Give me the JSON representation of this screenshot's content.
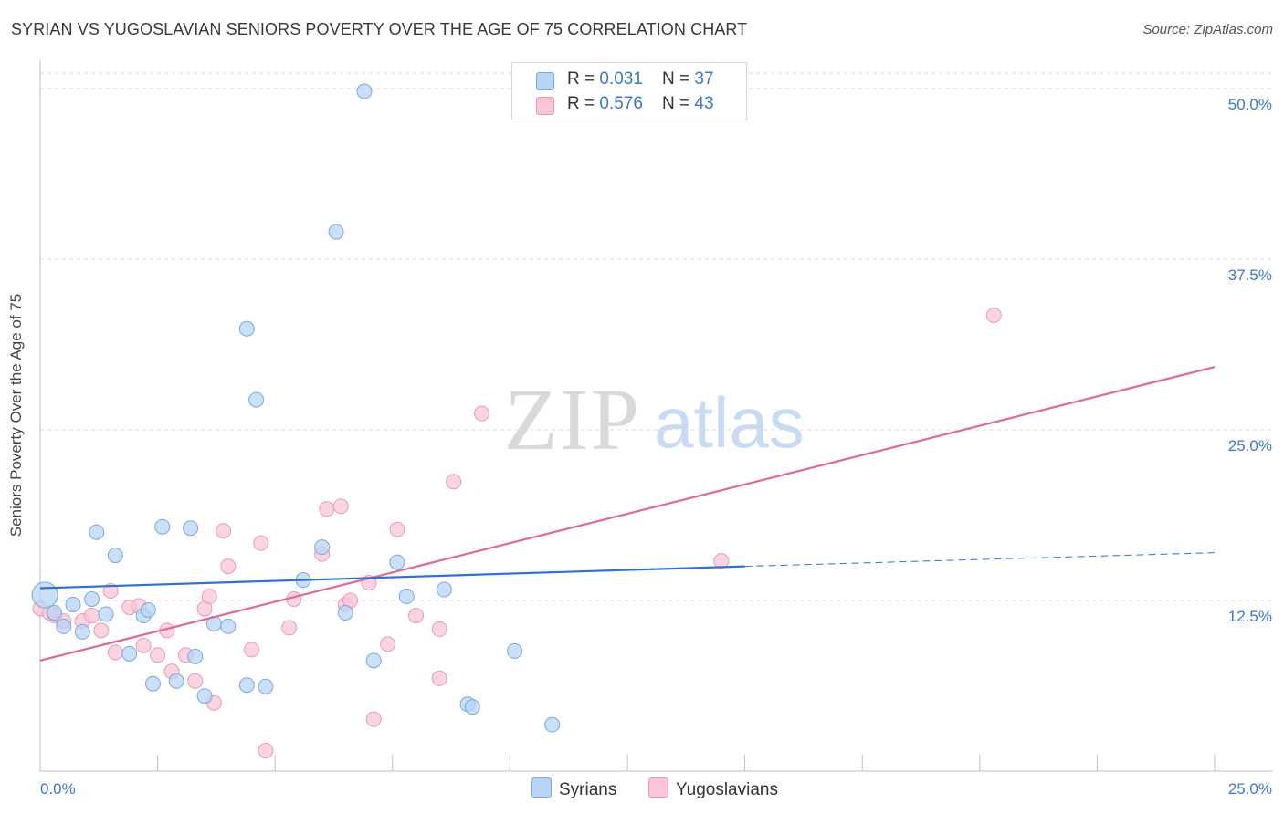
{
  "header": {
    "title": "SYRIAN VS YUGOSLAVIAN SENIORS POVERTY OVER THE AGE OF 75 CORRELATION CHART",
    "source": "Source: ZipAtlas.com"
  },
  "watermark": {
    "zip": "ZIP",
    "atlas": "atlas"
  },
  "legend": {
    "rows": [
      {
        "r_label": "R = ",
        "r_value": "0.031",
        "n_label": "N = ",
        "n_value": "37"
      },
      {
        "r_label": "R = ",
        "r_value": "0.576",
        "n_label": "N = ",
        "n_value": "43"
      }
    ],
    "bottom": [
      "Syrians",
      "Yugoslavians"
    ]
  },
  "colors": {
    "syrians_fill": "#b8d4f5",
    "syrians_stroke": "#7aa8de",
    "syrians_line": "#2f72cf",
    "yugoslavians_fill": "#f8c6d5",
    "yugoslavians_stroke": "#e99ab3",
    "yugoslavians_line": "#e0699a",
    "axis_label": "#3b78c8"
  },
  "chart_data": {
    "type": "scatter",
    "title": "SYRIAN VS YUGOSLAVIAN SENIORS POVERTY OVER THE AGE OF 75 CORRELATION CHART",
    "xlabel": "",
    "ylabel": "Seniors Poverty Over the Age of 75",
    "xlim": [
      0,
      25
    ],
    "ylim": [
      0,
      50
    ],
    "x_tick_labels": [
      "0.0%",
      "25.0%"
    ],
    "y_ticks": [
      12.5,
      25.0,
      37.5,
      50.0
    ],
    "y_tick_labels": [
      "12.5%",
      "25.0%",
      "37.5%",
      "50.0%"
    ],
    "grid": "horizontal dashed",
    "series": [
      {
        "name": "Syrians",
        "r": 0.031,
        "n": 37,
        "points": [
          [
            0.1,
            12.9
          ],
          [
            0.3,
            11.6
          ],
          [
            0.5,
            10.6
          ],
          [
            0.7,
            12.2
          ],
          [
            0.9,
            10.2
          ],
          [
            1.1,
            12.6
          ],
          [
            1.2,
            17.5
          ],
          [
            1.4,
            11.5
          ],
          [
            1.6,
            15.8
          ],
          [
            1.9,
            8.6
          ],
          [
            2.2,
            11.4
          ],
          [
            2.3,
            11.8
          ],
          [
            2.4,
            6.4
          ],
          [
            2.6,
            17.9
          ],
          [
            2.9,
            6.6
          ],
          [
            3.2,
            17.8
          ],
          [
            3.3,
            8.4
          ],
          [
            3.5,
            5.5
          ],
          [
            3.7,
            10.8
          ],
          [
            4.0,
            10.6
          ],
          [
            4.4,
            6.3
          ],
          [
            4.4,
            32.4
          ],
          [
            4.6,
            27.2
          ],
          [
            4.8,
            6.2
          ],
          [
            5.6,
            14.0
          ],
          [
            6.3,
            39.5
          ],
          [
            6.0,
            16.4
          ],
          [
            6.5,
            11.6
          ],
          [
            6.9,
            49.8
          ],
          [
            7.1,
            8.1
          ],
          [
            7.6,
            15.3
          ],
          [
            7.8,
            12.8
          ],
          [
            8.6,
            13.3
          ],
          [
            9.1,
            4.9
          ],
          [
            9.2,
            4.7
          ],
          [
            10.1,
            8.8
          ],
          [
            10.9,
            3.4
          ]
        ],
        "trend_solid": [
          [
            0,
            13.4
          ],
          [
            15.0,
            15.0
          ]
        ],
        "trend_dashed": [
          [
            15.0,
            15.0
          ],
          [
            25.0,
            16.0
          ]
        ]
      },
      {
        "name": "Yugoslavians",
        "r": 0.576,
        "n": 43,
        "points": [
          [
            0.0,
            11.9
          ],
          [
            0.3,
            11.4
          ],
          [
            0.5,
            11.0
          ],
          [
            0.9,
            11.0
          ],
          [
            1.1,
            11.4
          ],
          [
            1.3,
            10.3
          ],
          [
            1.5,
            13.2
          ],
          [
            1.6,
            8.7
          ],
          [
            1.9,
            12.0
          ],
          [
            2.1,
            12.1
          ],
          [
            2.2,
            9.2
          ],
          [
            2.5,
            8.5
          ],
          [
            2.7,
            10.3
          ],
          [
            2.8,
            7.3
          ],
          [
            3.1,
            8.5
          ],
          [
            3.3,
            6.6
          ],
          [
            3.5,
            11.9
          ],
          [
            3.6,
            12.8
          ],
          [
            3.7,
            5.0
          ],
          [
            3.9,
            17.6
          ],
          [
            4.0,
            15.0
          ],
          [
            4.5,
            8.9
          ],
          [
            4.7,
            16.7
          ],
          [
            4.8,
            1.5
          ],
          [
            5.3,
            10.5
          ],
          [
            5.4,
            12.6
          ],
          [
            6.0,
            15.9
          ],
          [
            6.1,
            19.2
          ],
          [
            6.4,
            19.4
          ],
          [
            6.5,
            12.2
          ],
          [
            6.6,
            12.5
          ],
          [
            7.0,
            13.8
          ],
          [
            7.1,
            3.8
          ],
          [
            7.4,
            9.3
          ],
          [
            7.6,
            17.7
          ],
          [
            8.0,
            11.4
          ],
          [
            8.5,
            6.8
          ],
          [
            8.5,
            10.4
          ],
          [
            8.8,
            21.2
          ],
          [
            9.4,
            26.2
          ],
          [
            14.5,
            15.4
          ],
          [
            20.3,
            33.4
          ],
          [
            0.2,
            11.6
          ]
        ],
        "trend_solid": [
          [
            0,
            8.1
          ],
          [
            25.0,
            29.6
          ]
        ]
      }
    ]
  }
}
